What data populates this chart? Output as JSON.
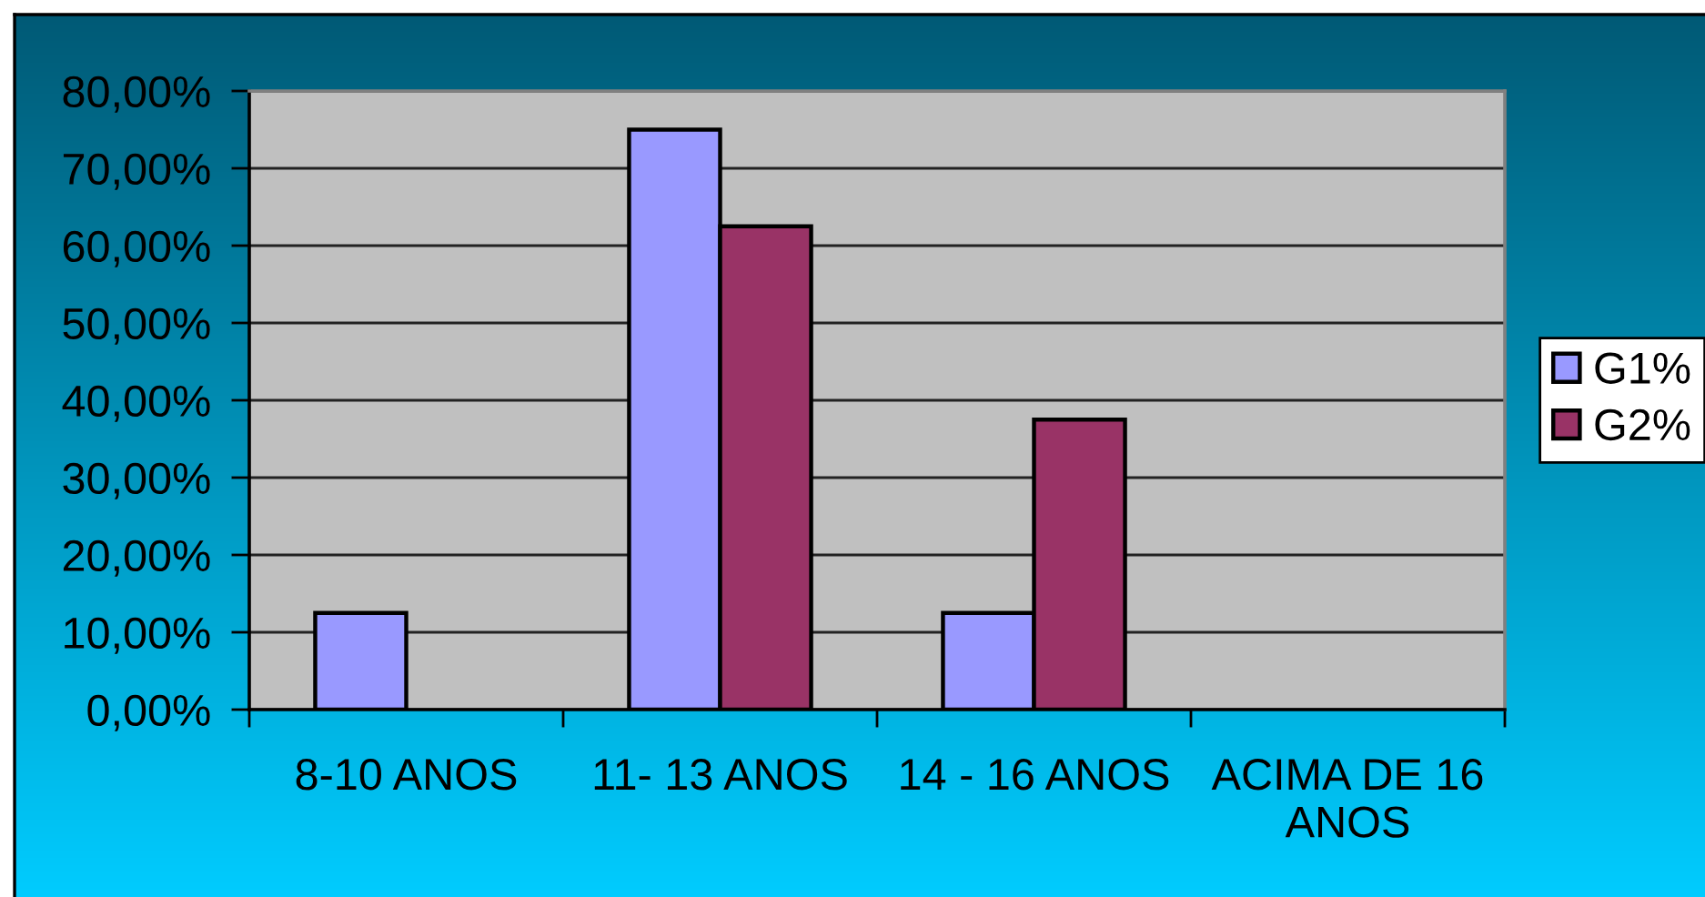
{
  "chart_data": {
    "type": "bar",
    "categories": [
      "8-10 ANOS",
      "11- 13 ANOS",
      "14 - 16 ANOS",
      "ACIMA DE 16 ANOS"
    ],
    "series": [
      {
        "name": "G1%",
        "color": "#9999ff",
        "values": [
          12.5,
          75,
          12.5,
          null
        ]
      },
      {
        "name": "G2%",
        "color": "#993366",
        "values": [
          null,
          62.5,
          37.5,
          null
        ]
      }
    ],
    "ylim": [
      0,
      80
    ],
    "yticks": [
      {
        "value": 0,
        "label": "0,00%"
      },
      {
        "value": 10,
        "label": "10,00%"
      },
      {
        "value": 20,
        "label": "20,00%"
      },
      {
        "value": 30,
        "label": "30,00%"
      },
      {
        "value": 40,
        "label": "40,00%"
      },
      {
        "value": 50,
        "label": "50,00%"
      },
      {
        "value": 60,
        "label": "60,00%"
      },
      {
        "value": 70,
        "label": "70,00%"
      },
      {
        "value": 80,
        "label": "80,00%"
      }
    ],
    "grid": "y",
    "legend": "right"
  }
}
